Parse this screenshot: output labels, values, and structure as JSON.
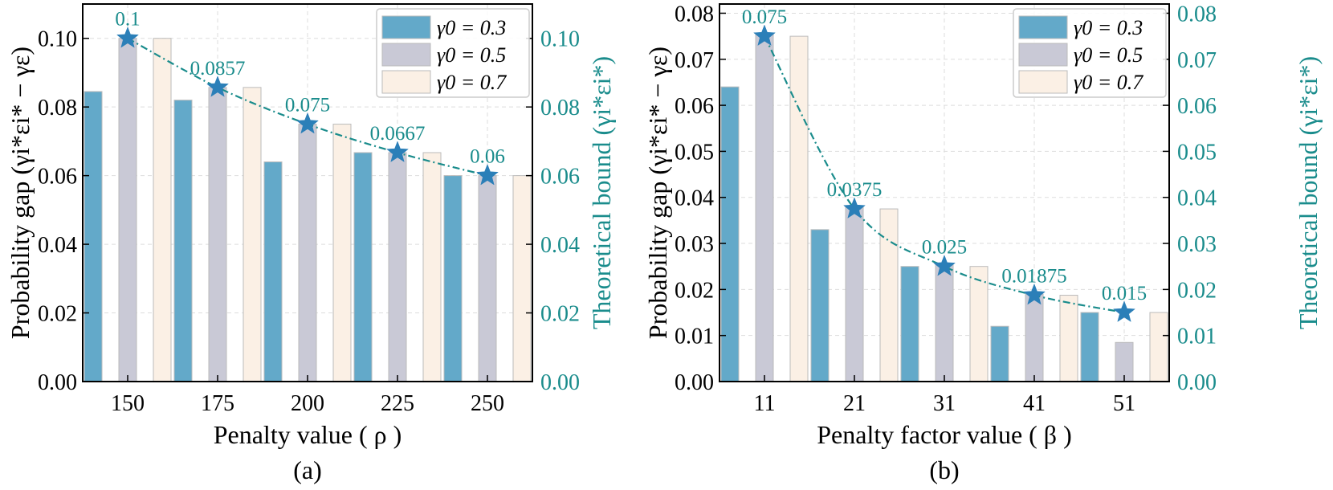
{
  "colors": {
    "series": [
      "#63A9C9",
      "#C9C9D6",
      "#FBF0E5"
    ],
    "bar_edge": "#BBBBBB",
    "accent": "#1A8C8C",
    "star": "#2B7FB8",
    "axis": "#000000",
    "grid": "#DDDDDD"
  },
  "chart_data": [
    {
      "type": "bar",
      "caption": "(a)",
      "xlabel": "Penalty value ( ρ )",
      "ylabel": "Probability gap (γi*εi* − γε)",
      "y2label": "Theoretical bound (γi*εi*)",
      "categories": [
        "150",
        "175",
        "200",
        "225",
        "250"
      ],
      "series": [
        {
          "name": "γ0 = 0.3",
          "values": [
            0.0845,
            0.082,
            0.064,
            0.0667,
            0.06
          ]
        },
        {
          "name": "γ0 = 0.5",
          "values": [
            0.1,
            0.0857,
            0.075,
            0.0667,
            0.06
          ]
        },
        {
          "name": "γ0 = 0.7",
          "values": [
            0.1,
            0.0857,
            0.075,
            0.0667,
            0.06
          ]
        }
      ],
      "bound": {
        "values": [
          0.1,
          0.0857,
          0.075,
          0.0667,
          0.06
        ],
        "labels": [
          "0.1",
          "0.0857",
          "0.075",
          "0.0667",
          "0.06"
        ]
      },
      "ylim": [
        0,
        0.11
      ],
      "yticks": [
        0,
        0.02,
        0.04,
        0.06,
        0.08,
        0.1
      ],
      "yticklabels": [
        "0.00",
        "0.02",
        "0.04",
        "0.06",
        "0.08",
        "0.10"
      ],
      "legend": "top-right",
      "grid": true
    },
    {
      "type": "bar",
      "caption": "(b)",
      "xlabel": "Penalty factor value ( β )",
      "ylabel": "Probability gap (γi*εi* − γε)",
      "y2label": "Theoretical bound (γi*εi*)",
      "categories": [
        "11",
        "21",
        "31",
        "41",
        "51"
      ],
      "series": [
        {
          "name": "γ0 = 0.3",
          "values": [
            0.064,
            0.033,
            0.025,
            0.012,
            0.015
          ]
        },
        {
          "name": "γ0 = 0.5",
          "values": [
            0.0755,
            0.038,
            0.0255,
            0.019,
            0.0085
          ]
        },
        {
          "name": "γ0 = 0.7",
          "values": [
            0.075,
            0.0375,
            0.025,
            0.01875,
            0.015
          ]
        }
      ],
      "bound": {
        "values": [
          0.075,
          0.0375,
          0.025,
          0.01875,
          0.015
        ],
        "labels": [
          "0.075",
          "0.0375",
          "0.025",
          "0.01875",
          "0.015"
        ]
      },
      "ylim": [
        0,
        0.082
      ],
      "yticks": [
        0,
        0.01,
        0.02,
        0.03,
        0.04,
        0.05,
        0.06,
        0.07,
        0.08
      ],
      "yticklabels": [
        "0.00",
        "0.01",
        "0.02",
        "0.03",
        "0.04",
        "0.05",
        "0.06",
        "0.07",
        "0.08"
      ],
      "legend": "top-right",
      "grid": true
    }
  ]
}
